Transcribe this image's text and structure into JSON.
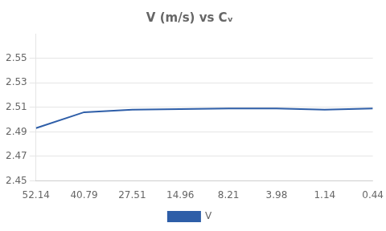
{
  "chart_data": {
    "type": "line",
    "title": "V (m/s) vs Cᵥ",
    "categories": [
      "52.14",
      "40.79",
      "27.51",
      "14.96",
      "8.21",
      "3.98",
      "1.14",
      "0.44"
    ],
    "series": [
      {
        "name": "V",
        "color": "#2E5EA8",
        "values": [
          2.493,
          2.506,
          2.508,
          2.5085,
          2.509,
          2.509,
          2.508,
          2.509
        ]
      }
    ],
    "ylim": [
      2.45,
      2.57
    ],
    "yticks": [
      2.45,
      2.47,
      2.49,
      2.51,
      2.53,
      2.55
    ],
    "grid": true,
    "legend": "bottom"
  }
}
